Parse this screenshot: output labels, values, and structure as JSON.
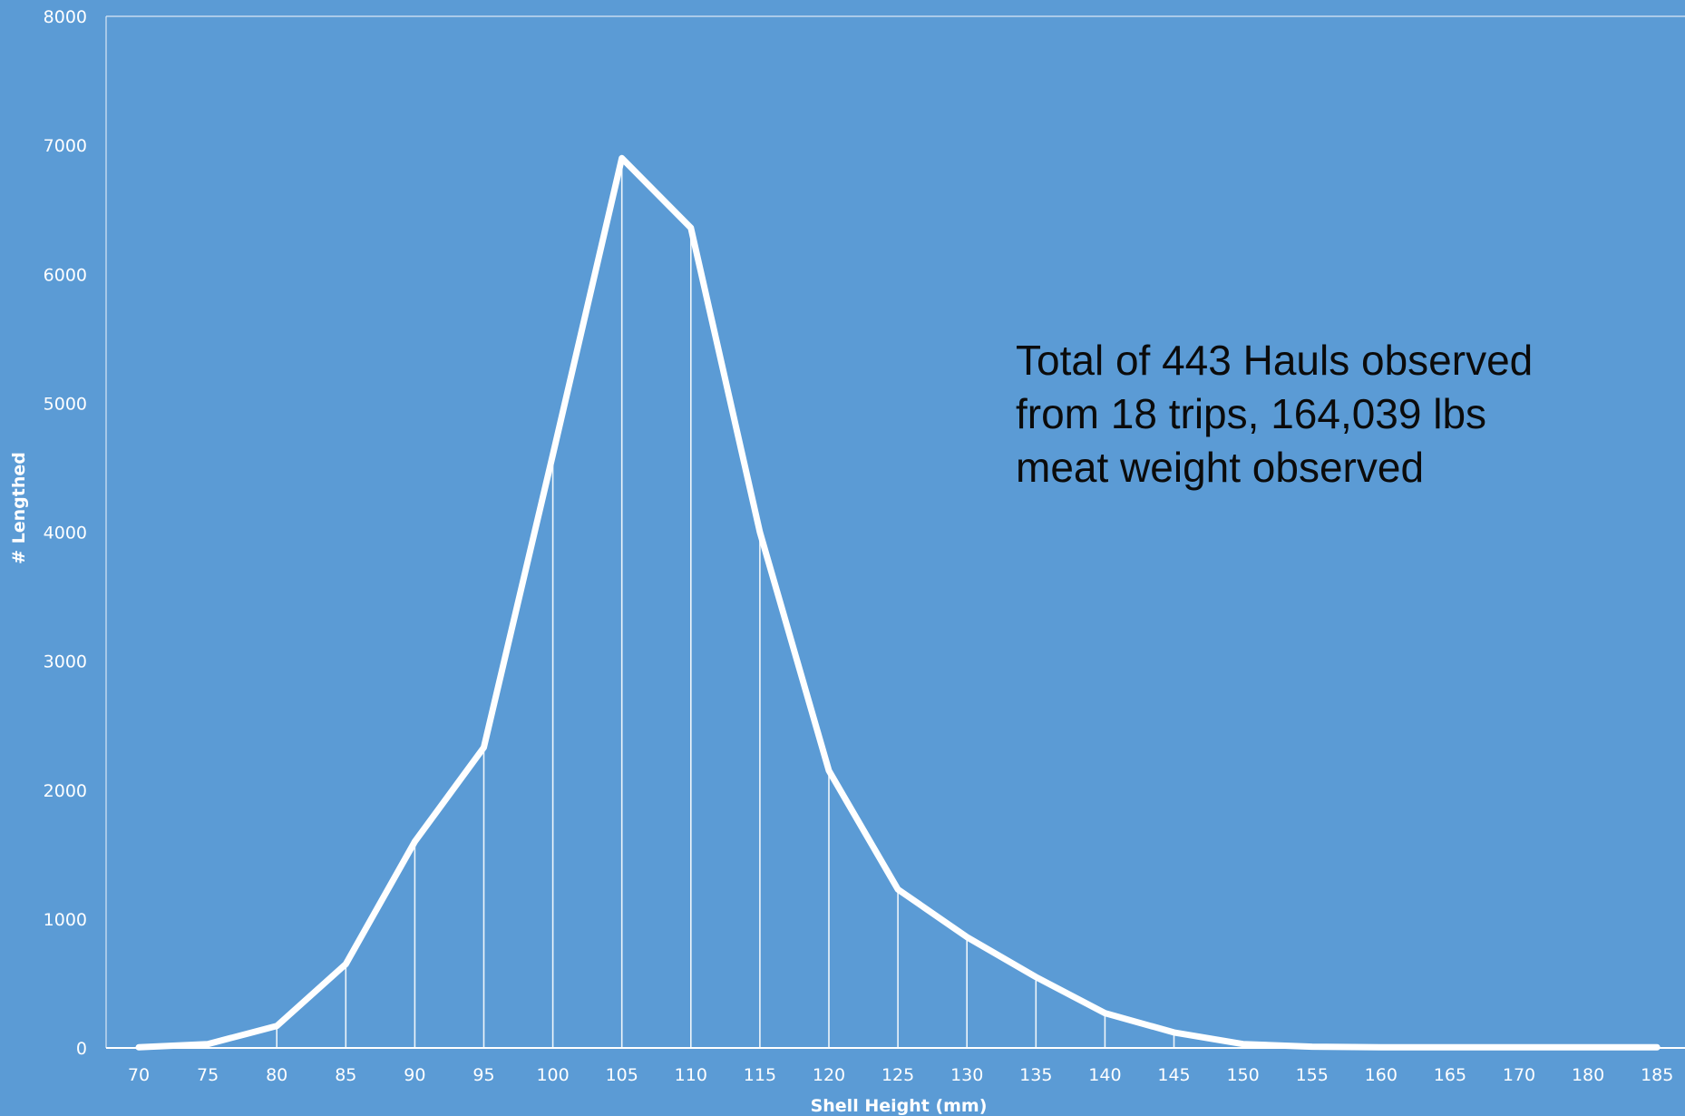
{
  "chart_data": {
    "type": "line",
    "title": "",
    "xlabel": "Shell Height (mm)",
    "ylabel": "# Lengthed",
    "ylim": [
      0,
      8000
    ],
    "yticks": [
      0,
      1000,
      2000,
      3000,
      4000,
      5000,
      6000,
      7000,
      8000
    ],
    "categories": [
      "70",
      "75",
      "80",
      "85",
      "90",
      "95",
      "100",
      "105",
      "110",
      "115",
      "120",
      "125",
      "130",
      "135",
      "140",
      "145",
      "150",
      "155",
      "160",
      "165",
      "170",
      "180",
      "185"
    ],
    "values": [
      5,
      30,
      170,
      650,
      1600,
      2330,
      4600,
      6900,
      6360,
      4000,
      2150,
      1230,
      860,
      550,
      270,
      120,
      30,
      10,
      5,
      5,
      5,
      5,
      5
    ],
    "grid": false,
    "legend": "none",
    "colors": {
      "background": "#5b9bd5",
      "line": "#ffffff",
      "drop_lines": "#ffffff",
      "annotation_text": "#0b0b0b"
    },
    "annotation": {
      "lines": [
        "Total of 443 Hauls observed",
        "from 18 trips, 164,039 lbs",
        "meat weight observed"
      ]
    }
  }
}
